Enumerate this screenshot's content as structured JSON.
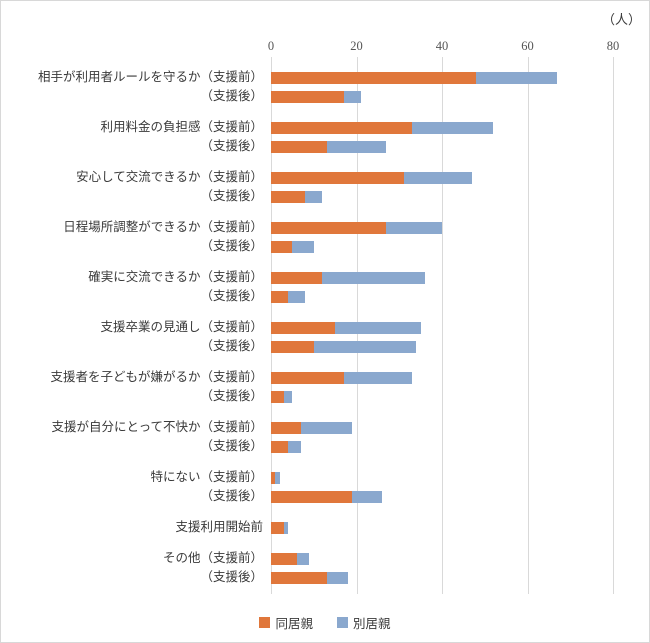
{
  "chart_data": {
    "type": "bar",
    "orientation": "horizontal",
    "stacked": true,
    "unit_label": "（人）",
    "xlim": [
      0,
      80
    ],
    "xticks": [
      0,
      20,
      40,
      60,
      80
    ],
    "grid": true,
    "legend_position": "bottom",
    "colors": {
      "doukyo": "#e0773b",
      "bekkyo": "#8aa8ce",
      "grid": "#d9d9d9",
      "tick_text": "#555555"
    },
    "series_names": [
      "同居親",
      "別居親"
    ],
    "groups": [
      {
        "label": "相手が利用者ルールを守るか",
        "rows": [
          {
            "sub": "（支援前）",
            "values": [
              48,
              19
            ]
          },
          {
            "sub": "（支援後）",
            "values": [
              17,
              4
            ]
          }
        ]
      },
      {
        "label": "利用料金の負担感",
        "rows": [
          {
            "sub": "（支援前）",
            "values": [
              33,
              19
            ]
          },
          {
            "sub": "（支援後）",
            "values": [
              13,
              14
            ]
          }
        ]
      },
      {
        "label": "安心して交流できるか",
        "rows": [
          {
            "sub": "（支援前）",
            "values": [
              31,
              16
            ]
          },
          {
            "sub": "（支援後）",
            "values": [
              8,
              4
            ]
          }
        ]
      },
      {
        "label": "日程場所調整ができるか",
        "rows": [
          {
            "sub": "（支援前）",
            "values": [
              27,
              13
            ]
          },
          {
            "sub": "（支援後）",
            "values": [
              5,
              5
            ]
          }
        ]
      },
      {
        "label": "確実に交流できるか",
        "rows": [
          {
            "sub": "（支援前）",
            "values": [
              12,
              24
            ]
          },
          {
            "sub": "（支援後）",
            "values": [
              4,
              4
            ]
          }
        ]
      },
      {
        "label": "支援卒業の見通し",
        "rows": [
          {
            "sub": "（支援前）",
            "values": [
              15,
              20
            ]
          },
          {
            "sub": "（支援後）",
            "values": [
              10,
              24
            ]
          }
        ]
      },
      {
        "label": "支援者を子どもが嫌がるか",
        "rows": [
          {
            "sub": "（支援前）",
            "values": [
              17,
              16
            ]
          },
          {
            "sub": "（支援後）",
            "values": [
              3,
              2
            ]
          }
        ]
      },
      {
        "label": "支援が自分にとって不快か",
        "rows": [
          {
            "sub": "（支援前）",
            "values": [
              7,
              12
            ]
          },
          {
            "sub": "（支援後）",
            "values": [
              4,
              3
            ]
          }
        ]
      },
      {
        "label": "特にない",
        "rows": [
          {
            "sub": "（支援前）",
            "values": [
              1,
              1
            ]
          },
          {
            "sub": "（支援後）",
            "values": [
              19,
              7
            ]
          }
        ]
      },
      {
        "label": "支援利用開始前",
        "rows": [
          {
            "sub": "",
            "values": [
              3,
              1
            ]
          }
        ]
      },
      {
        "label": "その他",
        "rows": [
          {
            "sub": "（支援前）",
            "values": [
              6,
              3
            ]
          },
          {
            "sub": "（支援後）",
            "values": [
              13,
              5
            ]
          }
        ]
      }
    ],
    "legend": [
      {
        "label": "同居親",
        "color_key": "doukyo"
      },
      {
        "label": "別居親",
        "color_key": "bekkyo"
      }
    ]
  }
}
